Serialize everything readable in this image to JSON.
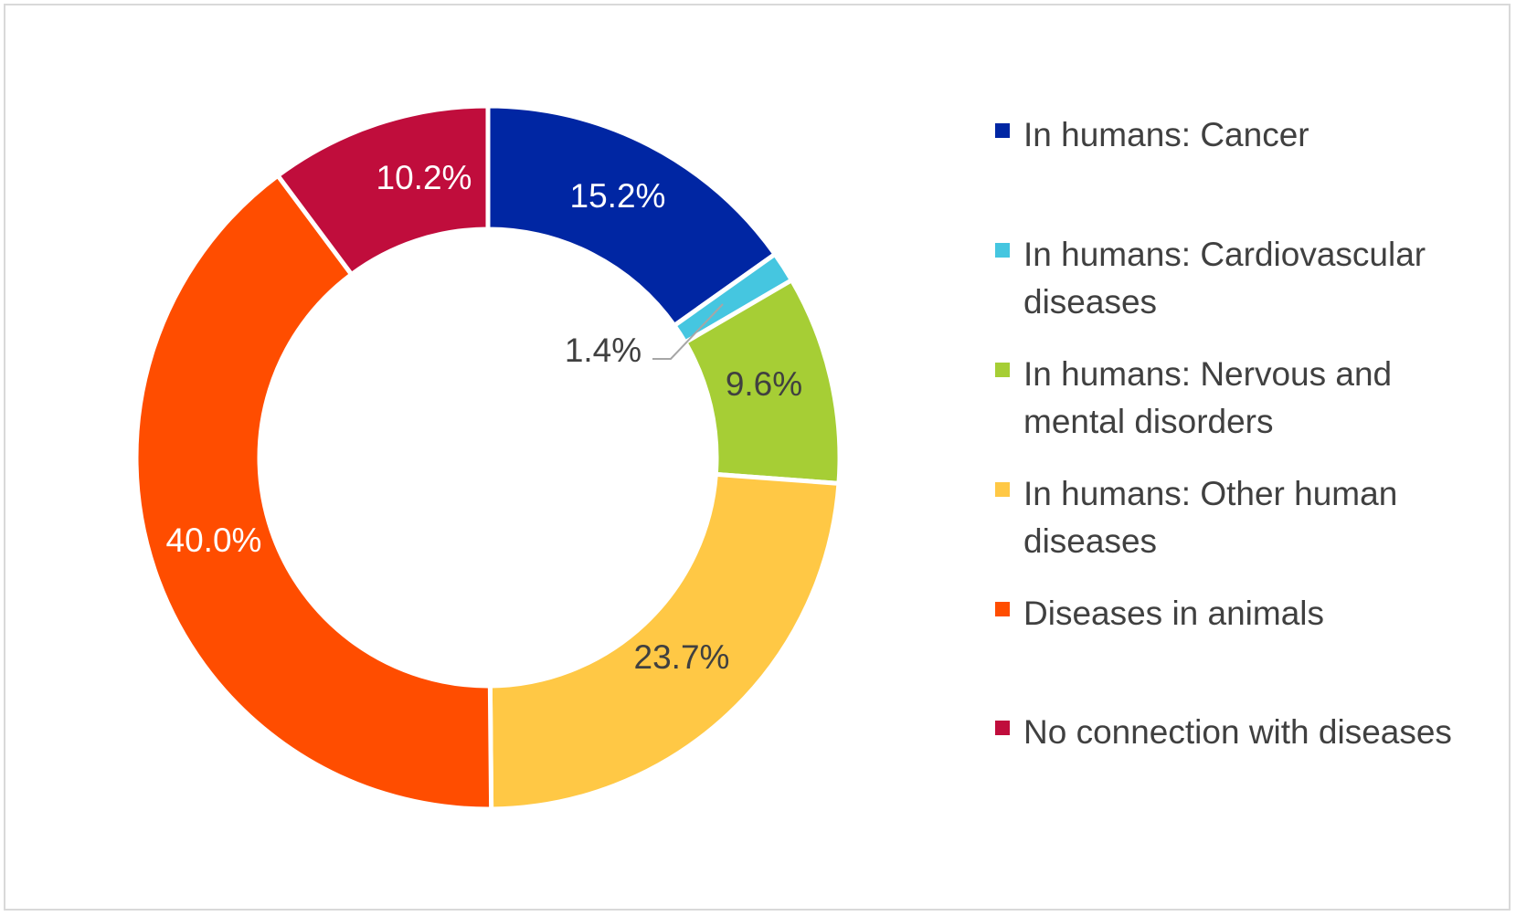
{
  "chart_data": {
    "type": "pie",
    "subtype": "donut",
    "title": "",
    "legend_position": "right",
    "categories": [
      "In humans: Cancer",
      "In humans: Cardiovascular diseases",
      "In humans: Nervous and mental disorders",
      "In humans: Other human diseases",
      "Diseases in animals",
      "No connection with diseases"
    ],
    "values": [
      15.2,
      1.4,
      9.6,
      23.7,
      40.0,
      10.2
    ],
    "labels": [
      "15.2%",
      "1.4%",
      "9.6%",
      "23.7%",
      "40.0%",
      "10.2%"
    ],
    "colors": [
      "#0026a3",
      "#45c6e0",
      "#a6ce35",
      "#ffc845",
      "#ff4d00",
      "#c00d3c"
    ],
    "label_colors": [
      "#ffffff",
      "#404040",
      "#404040",
      "#404040",
      "#ffffff",
      "#ffffff"
    ],
    "legend_lines": [
      [
        "In humans: Cancer"
      ],
      [
        "In humans: Cardiovascular",
        "diseases"
      ],
      [
        "In humans: Nervous and",
        "mental disorders"
      ],
      [
        "In humans: Other human",
        "diseases"
      ],
      [
        "Diseases in animals"
      ],
      [
        "No connection with diseases"
      ]
    ]
  }
}
